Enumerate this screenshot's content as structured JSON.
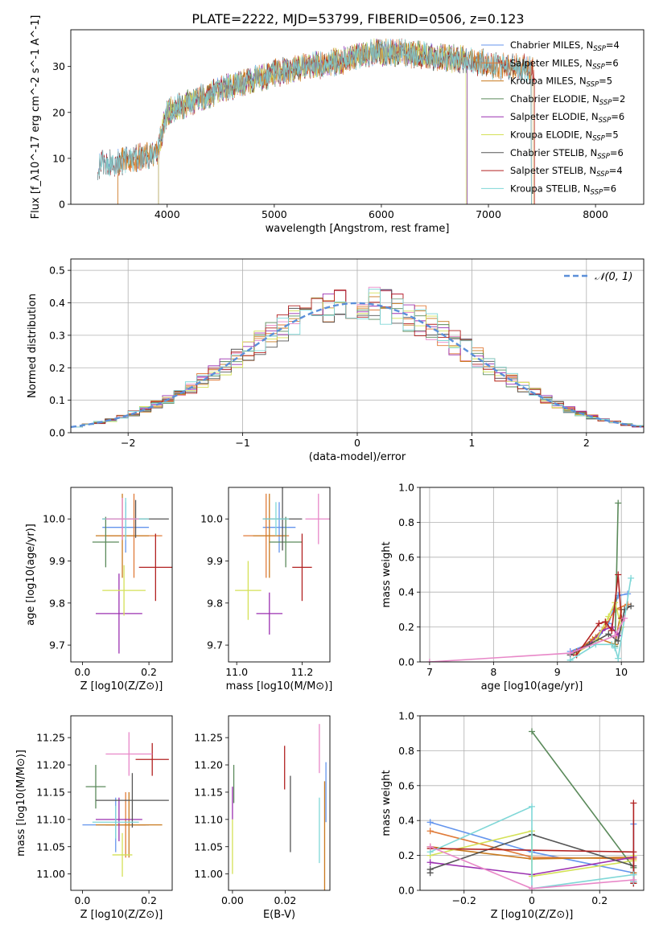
{
  "title": "PLATE=2222, MJD=53799, FIBERID=0506, z=0.123",
  "colors": [
    "#6495ed",
    "#e07b39",
    "#c97a1f",
    "#5b8a5b",
    "#9b30b0",
    "#d4e157",
    "#555555",
    "#b22222",
    "#7fd7d7",
    "#e888c8"
  ],
  "chart_data": [
    {
      "id": "spectrum",
      "type": "line",
      "xlabel": "wavelength [Angstrom, rest frame]",
      "ylabel": "Flux [f_λ10^-17 erg cm^-2 s^-1 A^-1]",
      "xlim": [
        3100,
        8450
      ],
      "ylim": [
        0,
        38
      ],
      "xticks": [
        4000,
        5000,
        6000,
        7000,
        8000
      ],
      "yticks": [
        0,
        10,
        20,
        30
      ],
      "legend_position": "top-right",
      "continuum": {
        "x": [
          3350,
          3600,
          3900,
          4000,
          4300,
          4500,
          4800,
          5000,
          5300,
          5600,
          5900,
          6200,
          6500,
          6800,
          7100,
          7400
        ],
        "y": [
          8.5,
          9.5,
          11,
          20,
          23,
          25,
          27,
          28.5,
          30,
          31,
          33,
          33,
          32,
          31.5,
          30,
          29.5
        ]
      },
      "series": [
        {
          "name": "Chabrier MILES, N_SSP=4",
          "label_main": "Chabrier MILES, N",
          "label_sub": "SSP",
          "label_tail": "=4",
          "color_idx": 0,
          "range": [
            3350,
            7400
          ]
        },
        {
          "name": "Salpeter MILES, N_SSP=6",
          "label_main": "Salpeter MILES, N",
          "label_sub": "SSP",
          "label_tail": "=6",
          "color_idx": 1,
          "range": [
            3540,
            7400
          ]
        },
        {
          "name": "Kroupa MILES, N_SSP=5",
          "label_main": "Kroupa MILES, N",
          "label_sub": "SSP",
          "label_tail": "=5",
          "color_idx": 2,
          "range": [
            3540,
            7420
          ]
        },
        {
          "name": "Chabrier ELODIE, N_SSP=2",
          "label_main": "Chabrier ELODIE, N",
          "label_sub": "SSP",
          "label_tail": "=2",
          "color_idx": 3,
          "range": [
            3920,
            6800
          ]
        },
        {
          "name": "Salpeter ELODIE, N_SSP=6",
          "label_main": "Salpeter ELODIE, N",
          "label_sub": "SSP",
          "label_tail": "=6",
          "color_idx": 4,
          "range": [
            3920,
            6800
          ]
        },
        {
          "name": "Kroupa ELODIE, N_SSP=5",
          "label_main": "Kroupa ELODIE, N",
          "label_sub": "SSP",
          "label_tail": "=5",
          "color_idx": 5,
          "range": [
            3920,
            6790
          ]
        },
        {
          "name": "Chabrier STELIB, N_SSP=6",
          "label_main": "Chabrier STELIB, N",
          "label_sub": "SSP",
          "label_tail": "=6",
          "color_idx": 6,
          "range": [
            3350,
            7400
          ]
        },
        {
          "name": "Salpeter STELIB, N_SSP=4",
          "label_main": "Salpeter STELIB, N",
          "label_sub": "SSP",
          "label_tail": "=4",
          "color_idx": 7,
          "range": [
            3350,
            7430
          ]
        },
        {
          "name": "Kroupa STELIB, N_SSP=6",
          "label_main": "Kroupa STELIB, N",
          "label_sub": "SSP",
          "label_tail": "=6",
          "color_idx": 8,
          "range": [
            3350,
            7400
          ]
        }
      ]
    },
    {
      "id": "residuals",
      "type": "line",
      "xlabel": "(data-model)/error",
      "ylabel": "Normed distribution",
      "xlim": [
        -2.5,
        2.5
      ],
      "ylim": [
        0,
        0.535
      ],
      "xticks": [
        -2,
        -1,
        0,
        1,
        2
      ],
      "yticks": [
        0.0,
        0.1,
        0.2,
        0.3,
        0.4,
        0.5
      ],
      "grid": true,
      "legend_position": "top-right",
      "gaussian_label": "𝒩(0, 1)",
      "bin_width": 0.1
    },
    {
      "id": "age_vs_Z",
      "type": "scatter",
      "xlabel": "Z [log10(Z/Z⊙)]",
      "ylabel": "age  [log10(age/yr)]",
      "xlim": [
        -0.035,
        0.27
      ],
      "ylim": [
        9.66,
        10.075
      ],
      "xticks": [
        0.0,
        0.2
      ],
      "yticks": [
        9.7,
        9.8,
        9.9,
        10.0
      ],
      "points": [
        {
          "x": 0.13,
          "y": 9.98,
          "xerr": 0.07,
          "yerr": 0.06,
          "c": 0
        },
        {
          "x": 0.155,
          "y": 9.96,
          "xerr": 0.085,
          "yerr": 0.1,
          "c": 1
        },
        {
          "x": 0.12,
          "y": 9.96,
          "xerr": 0.08,
          "yerr": 0.1,
          "c": 2
        },
        {
          "x": 0.07,
          "y": 9.945,
          "xerr": 0.04,
          "yerr": 0.06,
          "c": 3
        },
        {
          "x": 0.11,
          "y": 9.775,
          "xerr": 0.07,
          "yerr": 0.095,
          "c": 4
        },
        {
          "x": 0.125,
          "y": 9.83,
          "xerr": 0.065,
          "yerr": 0.06,
          "c": 5
        },
        {
          "x": 0.16,
          "y": 10.0,
          "xerr": 0.1,
          "yerr": 0.045,
          "c": 6
        },
        {
          "x": 0.22,
          "y": 9.885,
          "xerr": 0.05,
          "yerr": 0.08,
          "c": 7
        },
        {
          "x": 0.13,
          "y": 10.0,
          "xerr": 0.07,
          "yerr": 0.05,
          "c": 8
        },
        {
          "x": 0.12,
          "y": 10.0,
          "xerr": 0.05,
          "yerr": 0.05,
          "c": 9
        }
      ]
    },
    {
      "id": "age_vs_mass",
      "type": "scatter",
      "xlabel": "mass [log10(M/M⊙)]",
      "ylabel": "",
      "xlim": [
        10.975,
        11.285
      ],
      "ylim": [
        9.66,
        10.075
      ],
      "xticks": [
        11.0,
        11.2
      ],
      "yticks": [
        9.7,
        9.8,
        9.9,
        10.0
      ],
      "points": [
        {
          "x": 11.13,
          "y": 9.98,
          "xerr": 0.05,
          "yerr": 0.06,
          "c": 0
        },
        {
          "x": 11.09,
          "y": 9.96,
          "xerr": 0.07,
          "yerr": 0.1,
          "c": 1
        },
        {
          "x": 11.1,
          "y": 9.96,
          "xerr": 0.05,
          "yerr": 0.1,
          "c": 2
        },
        {
          "x": 11.15,
          "y": 9.945,
          "xerr": 0.05,
          "yerr": 0.06,
          "c": 3
        },
        {
          "x": 11.1,
          "y": 9.775,
          "xerr": 0.04,
          "yerr": 0.05,
          "c": 4
        },
        {
          "x": 11.035,
          "y": 9.83,
          "xerr": 0.04,
          "yerr": 0.07,
          "c": 5
        },
        {
          "x": 11.14,
          "y": 10.0,
          "xerr": 0.06,
          "yerr": 0.075,
          "c": 6
        },
        {
          "x": 11.2,
          "y": 9.885,
          "xerr": 0.03,
          "yerr": 0.08,
          "c": 7
        },
        {
          "x": 11.12,
          "y": 10.0,
          "xerr": 0.04,
          "yerr": 0.04,
          "c": 8
        },
        {
          "x": 11.25,
          "y": 10.0,
          "xerr": 0.04,
          "yerr": 0.06,
          "c": 9
        }
      ]
    },
    {
      "id": "weight_vs_age",
      "type": "line",
      "xlabel": "age  [log10(age/yr)]",
      "ylabel": "mass weight",
      "xlim": [
        6.85,
        10.35
      ],
      "ylim": [
        0,
        1.0
      ],
      "xticks": [
        7,
        8,
        9,
        10
      ],
      "yticks": [
        0.0,
        0.2,
        0.4,
        0.6,
        0.8,
        1.0
      ],
      "grid": true,
      "series": [
        {
          "c": 0,
          "x": [
            9.2,
            9.6,
            9.8,
            9.95,
            10.1
          ],
          "y": [
            0.06,
            0.12,
            0.22,
            0.38,
            0.39
          ]
        },
        {
          "c": 1,
          "x": [
            9.25,
            9.55,
            9.75,
            9.9,
            10.1
          ],
          "y": [
            0.05,
            0.13,
            0.2,
            0.3,
            0.33
          ]
        },
        {
          "c": 2,
          "x": [
            9.3,
            9.6,
            9.9,
            10.0
          ],
          "y": [
            0.06,
            0.14,
            0.1,
            0.3
          ]
        },
        {
          "c": 3,
          "x": [
            9.9,
            9.95
          ],
          "y": [
            0.09,
            0.91
          ]
        },
        {
          "c": 4,
          "x": [
            9.2,
            9.5,
            9.7,
            9.85,
            9.95,
            10.0
          ],
          "y": [
            0.05,
            0.1,
            0.18,
            0.2,
            0.15,
            0.2
          ]
        },
        {
          "c": 5,
          "x": [
            9.3,
            9.6,
            9.8,
            9.9,
            10.0
          ],
          "y": [
            0.05,
            0.12,
            0.26,
            0.34,
            0.2
          ]
        },
        {
          "c": 6,
          "x": [
            9.2,
            9.5,
            9.8,
            9.95,
            10.05,
            10.15
          ],
          "y": [
            0.04,
            0.1,
            0.16,
            0.12,
            0.3,
            0.32
          ]
        },
        {
          "c": 7,
          "x": [
            9.3,
            9.65,
            9.75,
            9.85,
            9.95,
            10.0
          ],
          "y": [
            0.04,
            0.22,
            0.23,
            0.18,
            0.5,
            0.25
          ]
        },
        {
          "c": 8,
          "x": [
            9.2,
            9.6,
            9.85,
            9.9,
            9.95,
            10.15
          ],
          "y": [
            0.01,
            0.1,
            0.1,
            0.08,
            0.02,
            0.48
          ]
        },
        {
          "c": 9,
          "x": [
            7.0,
            9.2,
            9.9,
            10.05
          ],
          "y": [
            0.0,
            0.05,
            0.15,
            0.25
          ]
        }
      ]
    },
    {
      "id": "mass_vs_Z",
      "type": "scatter",
      "xlabel": "Z [log10(Z/Z⊙)]",
      "ylabel": "mass [log10(M/M⊙)]",
      "xlim": [
        -0.035,
        0.27
      ],
      "ylim": [
        10.97,
        11.29
      ],
      "xticks": [
        0.0,
        0.2
      ],
      "yticks": [
        11.0,
        11.05,
        11.1,
        11.15,
        11.2,
        11.25
      ],
      "points": [
        {
          "x": 0.1,
          "y": 11.09,
          "xerr": 0.1,
          "yerr": 0.05,
          "c": 0
        },
        {
          "x": 0.13,
          "y": 11.09,
          "xerr": 0.06,
          "yerr": 0.06,
          "c": 1
        },
        {
          "x": 0.14,
          "y": 11.09,
          "xerr": 0.1,
          "yerr": 0.06,
          "c": 2
        },
        {
          "x": 0.04,
          "y": 11.16,
          "xerr": 0.03,
          "yerr": 0.04,
          "c": 3
        },
        {
          "x": 0.11,
          "y": 11.1,
          "xerr": 0.07,
          "yerr": 0.04,
          "c": 4
        },
        {
          "x": 0.12,
          "y": 11.035,
          "xerr": 0.03,
          "yerr": 0.04,
          "c": 5
        },
        {
          "x": 0.15,
          "y": 11.135,
          "xerr": 0.11,
          "yerr": 0.05,
          "c": 6
        },
        {
          "x": 0.21,
          "y": 11.21,
          "xerr": 0.05,
          "yerr": 0.03,
          "c": 7
        },
        {
          "x": 0.1,
          "y": 11.095,
          "xerr": 0.07,
          "yerr": 0.03,
          "c": 8
        },
        {
          "x": 0.14,
          "y": 11.22,
          "xerr": 0.07,
          "yerr": 0.04,
          "c": 9
        }
      ]
    },
    {
      "id": "mass_vs_ebv",
      "type": "scatter",
      "xlabel": "E(B-V)",
      "ylabel": "",
      "xlim": [
        -0.0015,
        0.037
      ],
      "ylim": [
        10.97,
        11.29
      ],
      "xticks": [
        0.0,
        0.02
      ],
      "yticks": [
        11.0,
        11.05,
        11.1,
        11.15,
        11.2,
        11.25
      ],
      "points": [
        {
          "x": 0.0355,
          "y": 11.15,
          "xerr": 0,
          "yerr": 0.055,
          "c": 0
        },
        {
          "x": 0.035,
          "y": 11.07,
          "xerr": 0,
          "yerr": 0.1,
          "c": 2
        },
        {
          "x": 0.0005,
          "y": 11.165,
          "xerr": 0,
          "yerr": 0.035,
          "c": 3
        },
        {
          "x": 0.0,
          "y": 11.13,
          "xerr": 0,
          "yerr": 0.03,
          "c": 4
        },
        {
          "x": 0.0,
          "y": 11.05,
          "xerr": 0,
          "yerr": 0.05,
          "c": 5
        },
        {
          "x": 0.022,
          "y": 11.11,
          "xerr": 0,
          "yerr": 0.07,
          "c": 6
        },
        {
          "x": 0.0198,
          "y": 11.195,
          "xerr": 0,
          "yerr": 0.04,
          "c": 7
        },
        {
          "x": 0.033,
          "y": 11.08,
          "xerr": 0,
          "yerr": 0.06,
          "c": 8
        },
        {
          "x": 0.033,
          "y": 11.23,
          "xerr": 0,
          "yerr": 0.045,
          "c": 9
        }
      ]
    },
    {
      "id": "weight_vs_Z",
      "type": "line",
      "xlabel": "Z [log10(Z/Z⊙)]",
      "ylabel": "mass weight",
      "xlim": [
        -0.33,
        0.33
      ],
      "ylim": [
        0,
        1.0
      ],
      "xticks": [
        -0.2,
        0.0,
        0.2
      ],
      "yticks": [
        0.0,
        0.2,
        0.4,
        0.6,
        0.8,
        1.0
      ],
      "grid": true,
      "series": [
        {
          "c": 0,
          "x": [
            -0.3,
            0.0,
            0.3,
            0.3
          ],
          "y": [
            0.39,
            0.22,
            0.1,
            0.38
          ]
        },
        {
          "c": 1,
          "x": [
            -0.3,
            0.0,
            0.3,
            0.3
          ],
          "y": [
            0.34,
            0.19,
            0.18,
            0.05
          ]
        },
        {
          "c": 2,
          "x": [
            -0.3,
            0.0,
            0.3,
            0.3
          ],
          "y": [
            0.25,
            0.18,
            0.19,
            0.1
          ]
        },
        {
          "c": 3,
          "x": [
            0.0,
            0.3,
            0.3
          ],
          "y": [
            0.91,
            0.13,
            0.09
          ]
        },
        {
          "c": 4,
          "x": [
            -0.3,
            0.0,
            0.3,
            0.3
          ],
          "y": [
            0.16,
            0.09,
            0.19,
            0.05
          ]
        },
        {
          "c": 5,
          "x": [
            -0.3,
            0.0,
            0.0,
            0.3,
            0.3
          ],
          "y": [
            0.2,
            0.34,
            0.08,
            0.17,
            0.2
          ]
        },
        {
          "c": 6,
          "x": [
            -0.3,
            -0.3,
            0.0,
            0.3,
            0.3
          ],
          "y": [
            0.1,
            0.12,
            0.32,
            0.14,
            0.04
          ]
        },
        {
          "c": 7,
          "x": [
            -0.3,
            0.3,
            0.3,
            0.3
          ],
          "y": [
            0.24,
            0.22,
            0.5,
            0.04
          ]
        },
        {
          "c": 8,
          "x": [
            -0.3,
            0.0,
            0.0,
            0.3,
            0.3
          ],
          "y": [
            0.22,
            0.48,
            0.01,
            0.09,
            0.05
          ]
        },
        {
          "c": 9,
          "x": [
            -0.3,
            0.0,
            0.3
          ],
          "y": [
            0.25,
            0.01,
            0.06
          ]
        }
      ]
    }
  ]
}
